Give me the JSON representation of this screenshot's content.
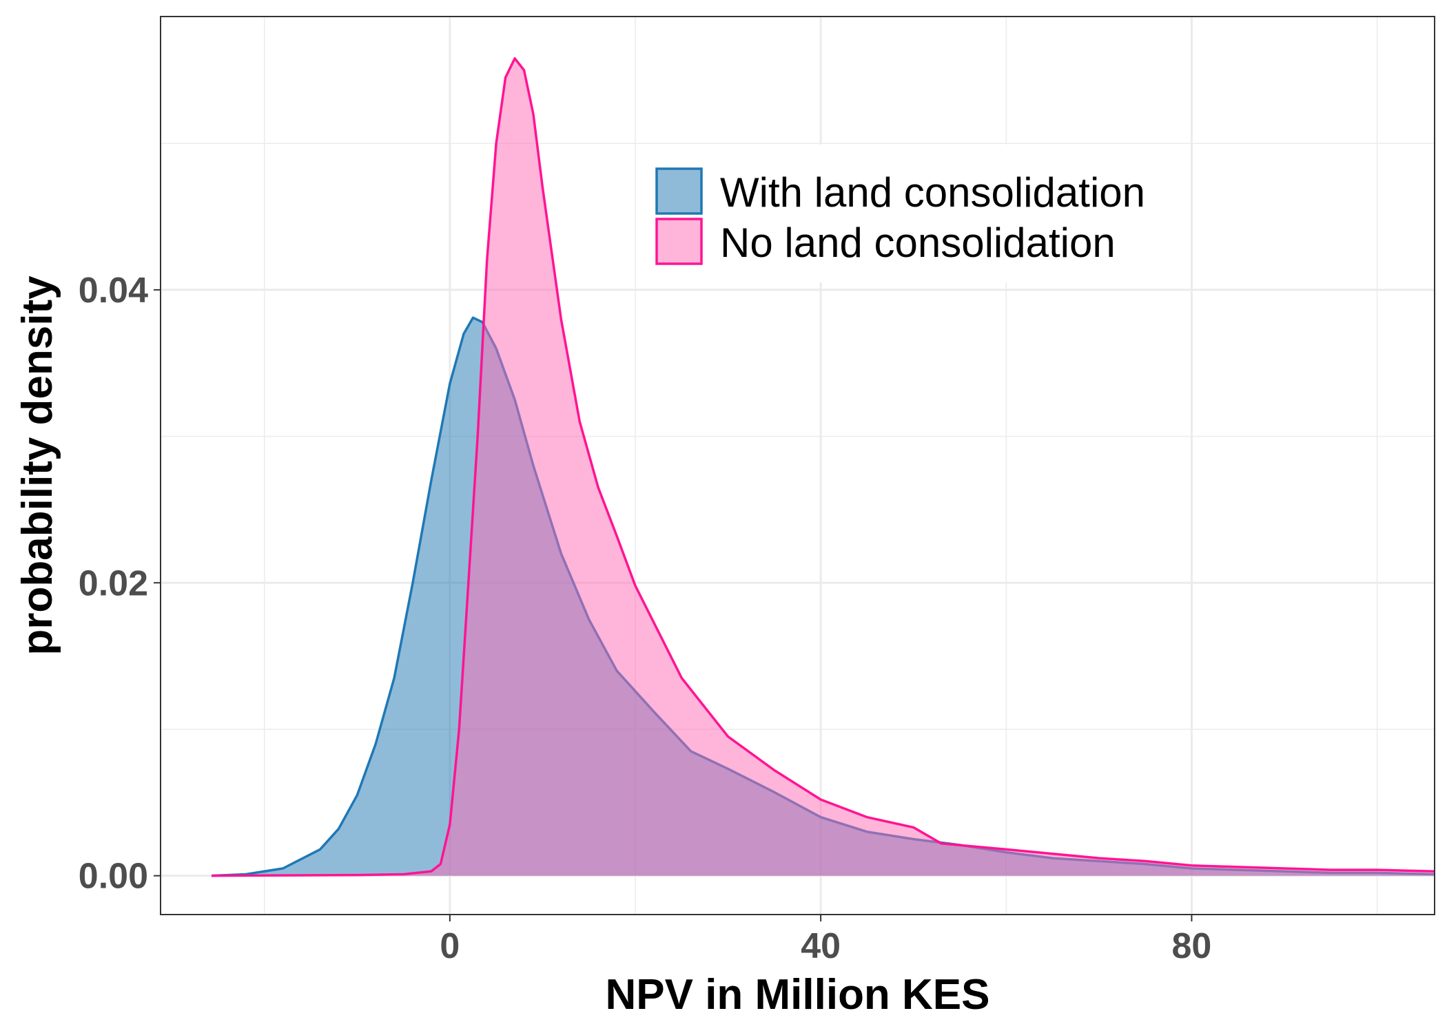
{
  "chart_data": {
    "type": "area",
    "xlabel": "NPV in Million KES",
    "ylabel": "probability density",
    "xlim": [
      -31.2,
      106.2
    ],
    "ylim": [
      -0.00265,
      0.05866
    ],
    "x_ticks": [
      0,
      40,
      80
    ],
    "x_tick_labels": [
      "0",
      "40",
      "80"
    ],
    "y_ticks": [
      0,
      0.02,
      0.04
    ],
    "y_tick_labels": [
      "0.00",
      "0.02",
      "0.04"
    ],
    "grid": true,
    "legend_position": "top-right",
    "series": [
      {
        "name": "With land consolidation",
        "color": "#1f78b4",
        "fill": "#1f78b4",
        "points": [
          [
            -25.7,
            0
          ],
          [
            -22,
            0.0001
          ],
          [
            -18,
            0.0005
          ],
          [
            -14,
            0.0018
          ],
          [
            -12,
            0.0032
          ],
          [
            -10,
            0.0055
          ],
          [
            -8,
            0.009
          ],
          [
            -6,
            0.0135
          ],
          [
            -4,
            0.02
          ],
          [
            -2,
            0.027
          ],
          [
            0,
            0.0336
          ],
          [
            1.5,
            0.037
          ],
          [
            2.5,
            0.0381
          ],
          [
            3.5,
            0.0378
          ],
          [
            5,
            0.036
          ],
          [
            7,
            0.0325
          ],
          [
            9,
            0.028
          ],
          [
            12,
            0.022
          ],
          [
            15,
            0.0175
          ],
          [
            18,
            0.014
          ],
          [
            22,
            0.0112
          ],
          [
            26,
            0.0085
          ],
          [
            30,
            0.0073
          ],
          [
            35,
            0.0057
          ],
          [
            40,
            0.004
          ],
          [
            45,
            0.003
          ],
          [
            50,
            0.0025
          ],
          [
            55,
            0.0021
          ],
          [
            60,
            0.0016
          ],
          [
            65,
            0.0012
          ],
          [
            70,
            0.001
          ],
          [
            75,
            0.0008
          ],
          [
            80,
            0.0005
          ],
          [
            85,
            0.0004
          ],
          [
            90,
            0.0003
          ],
          [
            95,
            0.0002
          ],
          [
            100,
            0.0002
          ],
          [
            106.2,
            0.0001
          ]
        ]
      },
      {
        "name": "No land consolidation",
        "color": "#ff1493",
        "fill": "#ff69b4",
        "points": [
          [
            -25.7,
            0
          ],
          [
            -10,
            5e-05
          ],
          [
            -5,
            0.0001
          ],
          [
            -2,
            0.0003
          ],
          [
            -1,
            0.0008
          ],
          [
            0,
            0.0035
          ],
          [
            1,
            0.01
          ],
          [
            2,
            0.02
          ],
          [
            3,
            0.03
          ],
          [
            4,
            0.042
          ],
          [
            5,
            0.05
          ],
          [
            6,
            0.0545
          ],
          [
            7,
            0.0558
          ],
          [
            8,
            0.055
          ],
          [
            9,
            0.052
          ],
          [
            10,
            0.047
          ],
          [
            12,
            0.038
          ],
          [
            14,
            0.031
          ],
          [
            16,
            0.0265
          ],
          [
            18,
            0.0232
          ],
          [
            20,
            0.0198
          ],
          [
            25,
            0.0135
          ],
          [
            30,
            0.0095
          ],
          [
            35,
            0.0072
          ],
          [
            40,
            0.0052
          ],
          [
            45,
            0.004
          ],
          [
            50,
            0.0033
          ],
          [
            53,
            0.0022
          ],
          [
            60,
            0.0018
          ],
          [
            65,
            0.0015
          ],
          [
            70,
            0.0012
          ],
          [
            75,
            0.001
          ],
          [
            80,
            0.0007
          ],
          [
            85,
            0.0006
          ],
          [
            90,
            0.0005
          ],
          [
            95,
            0.0004
          ],
          [
            100,
            0.0004
          ],
          [
            106.2,
            0.0003
          ]
        ]
      }
    ]
  }
}
